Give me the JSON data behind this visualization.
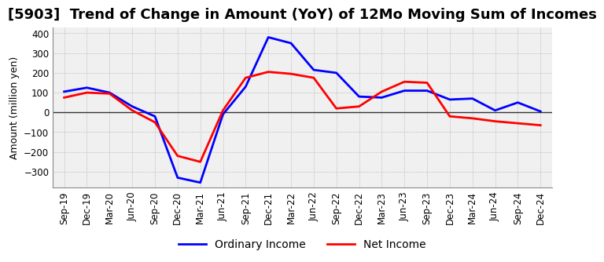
{
  "title": "[5903]  Trend of Change in Amount (YoY) of 12Mo Moving Sum of Incomes",
  "ylabel": "Amount (million yen)",
  "x_labels": [
    "Sep-19",
    "Dec-19",
    "Mar-20",
    "Jun-20",
    "Sep-20",
    "Dec-20",
    "Mar-21",
    "Jun-21",
    "Sep-21",
    "Dec-21",
    "Mar-22",
    "Jun-22",
    "Sep-22",
    "Dec-22",
    "Mar-23",
    "Jun-23",
    "Sep-23",
    "Dec-23",
    "Mar-24",
    "Jun-24",
    "Sep-24",
    "Dec-24"
  ],
  "ordinary_income": [
    105,
    125,
    100,
    30,
    -20,
    -330,
    -355,
    -10,
    130,
    380,
    350,
    215,
    200,
    80,
    75,
    110,
    110,
    65,
    70,
    10,
    50,
    5
  ],
  "net_income": [
    75,
    100,
    95,
    10,
    -50,
    -220,
    -250,
    10,
    175,
    205,
    195,
    175,
    20,
    30,
    105,
    155,
    150,
    -20,
    -30,
    -45,
    -55,
    -65
  ],
  "ordinary_color": "#0000ff",
  "net_color": "#ff0000",
  "ylim": [
    -380,
    430
  ],
  "yticks": [
    -300,
    -200,
    -100,
    0,
    100,
    200,
    300,
    400
  ],
  "bg_color": "#ffffff",
  "plot_bg_color": "#f0f0f0",
  "grid_color": "#aaaaaa",
  "grid_style": "dotted",
  "title_fontsize": 13,
  "axis_label_fontsize": 9,
  "tick_fontsize": 8.5,
  "legend_fontsize": 10,
  "linewidth": 2.0
}
